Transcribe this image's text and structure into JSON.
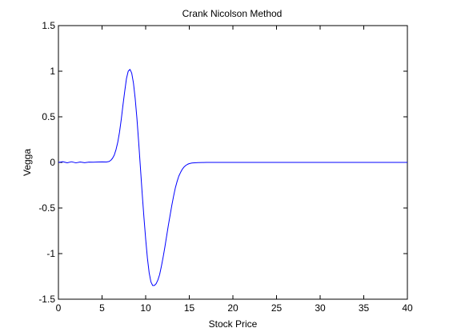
{
  "chart_data": {
    "type": "line",
    "title": "Crank Nicolson Method",
    "xlabel": "Stock Price",
    "ylabel": "Vegga",
    "xlim": [
      0,
      40
    ],
    "ylim": [
      -1.5,
      1.5
    ],
    "xticks": [
      0,
      5,
      10,
      15,
      20,
      25,
      30,
      35,
      40
    ],
    "xtick_labels": [
      "0",
      "5",
      "10",
      "15",
      "20",
      "25",
      "30",
      "35",
      "40"
    ],
    "yticks": [
      -1.5,
      -1,
      -0.5,
      0,
      0.5,
      1,
      1.5
    ],
    "ytick_labels": [
      "-1.5",
      "-1",
      "-0.5",
      "0",
      "0.5",
      "1",
      "1.5"
    ],
    "grid": false,
    "series": [
      {
        "color": "#0000ff",
        "x": [
          0,
          0.5,
          1,
          1.5,
          2,
          2.5,
          3,
          3.5,
          4,
          4.5,
          5,
          5.5,
          5.8,
          6,
          6.2,
          6.4,
          6.6,
          6.8,
          7,
          7.2,
          7.4,
          7.6,
          7.8,
          8,
          8.2,
          8.4,
          8.6,
          8.8,
          9,
          9.2,
          9.4,
          9.6,
          9.8,
          10,
          10.2,
          10.4,
          10.6,
          10.8,
          11,
          11.2,
          11.4,
          11.6,
          11.8,
          12,
          12.2,
          12.4,
          12.6,
          12.8,
          13,
          13.2,
          13.4,
          13.6,
          13.8,
          14,
          14.2,
          14.4,
          14.6,
          14.8,
          15,
          15.3,
          15.6,
          16,
          16.5,
          17,
          18,
          20,
          25,
          30,
          35,
          40
        ],
        "y": [
          0.0,
          0.008,
          -0.004,
          0.007,
          -0.005,
          0.004,
          -0.003,
          0.003,
          0.002,
          0.004,
          0.005,
          0.004,
          0.01,
          0.022,
          0.045,
          0.08,
          0.14,
          0.22,
          0.33,
          0.47,
          0.63,
          0.78,
          0.92,
          1.0,
          1.02,
          0.98,
          0.87,
          0.7,
          0.48,
          0.22,
          -0.06,
          -0.34,
          -0.6,
          -0.84,
          -1.05,
          -1.21,
          -1.31,
          -1.35,
          -1.35,
          -1.33,
          -1.29,
          -1.23,
          -1.14,
          -1.04,
          -0.93,
          -0.81,
          -0.69,
          -0.58,
          -0.47,
          -0.37,
          -0.28,
          -0.21,
          -0.15,
          -0.11,
          -0.075,
          -0.05,
          -0.033,
          -0.021,
          -0.013,
          -0.007,
          -0.004,
          -0.002,
          -0.001,
          0.0,
          0.0,
          0.0,
          0.0,
          0.0,
          0.0,
          0.0
        ]
      }
    ]
  }
}
